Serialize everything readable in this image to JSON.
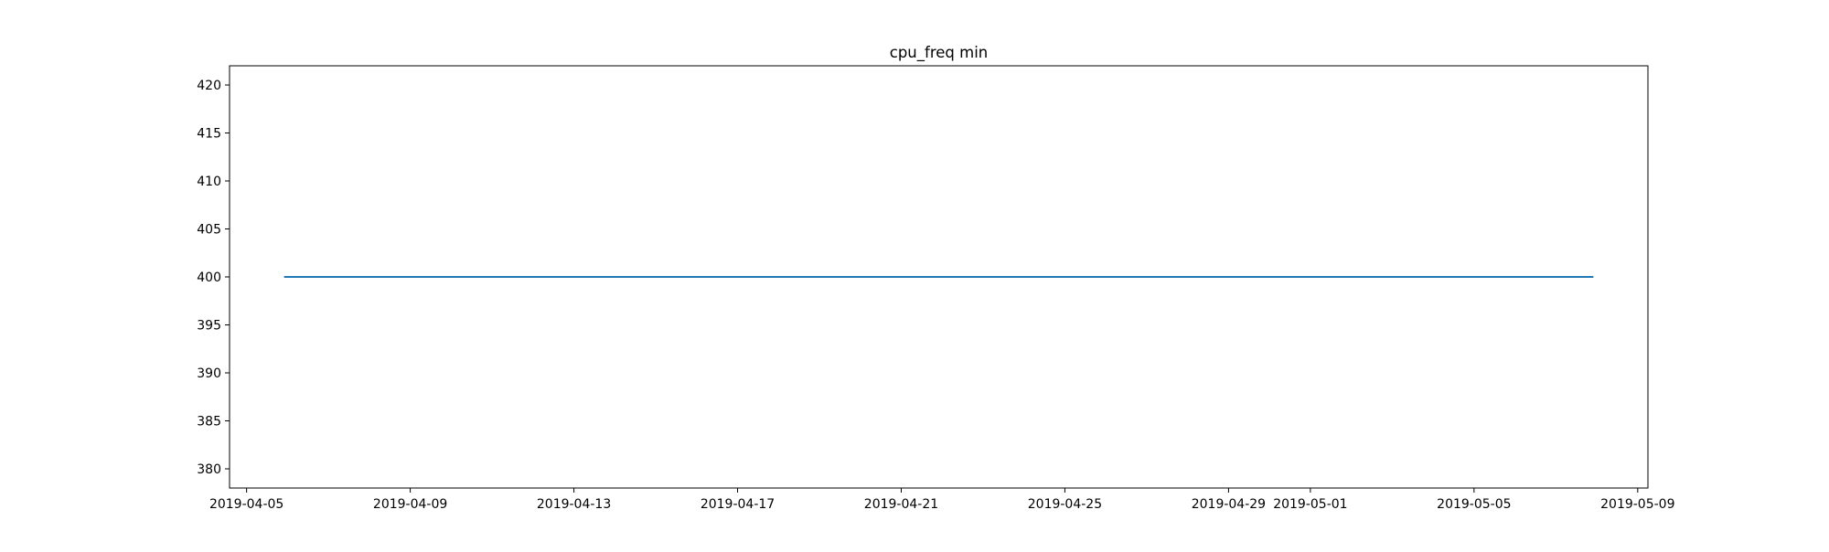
{
  "chart_data": {
    "type": "line",
    "title": "cpu_freq min",
    "xlabel": "",
    "ylabel": "",
    "x_axis_type": "date",
    "xlim": [
      "2019-04-04T14:00",
      "2019-05-09T06:00"
    ],
    "ylim": [
      378,
      422
    ],
    "x_ticks": [
      "2019-04-05",
      "2019-04-09",
      "2019-04-13",
      "2019-04-17",
      "2019-04-21",
      "2019-04-25",
      "2019-04-29",
      "2019-05-01",
      "2019-05-05",
      "2019-05-09"
    ],
    "y_ticks": [
      380,
      385,
      390,
      395,
      400,
      405,
      410,
      415,
      420
    ],
    "grid": false,
    "legend": "none",
    "series": [
      {
        "color": "#1f77b4",
        "x": [
          "2019-04-05T22:00",
          "2019-05-07T22:00"
        ],
        "y": [
          400,
          400
        ]
      }
    ]
  }
}
